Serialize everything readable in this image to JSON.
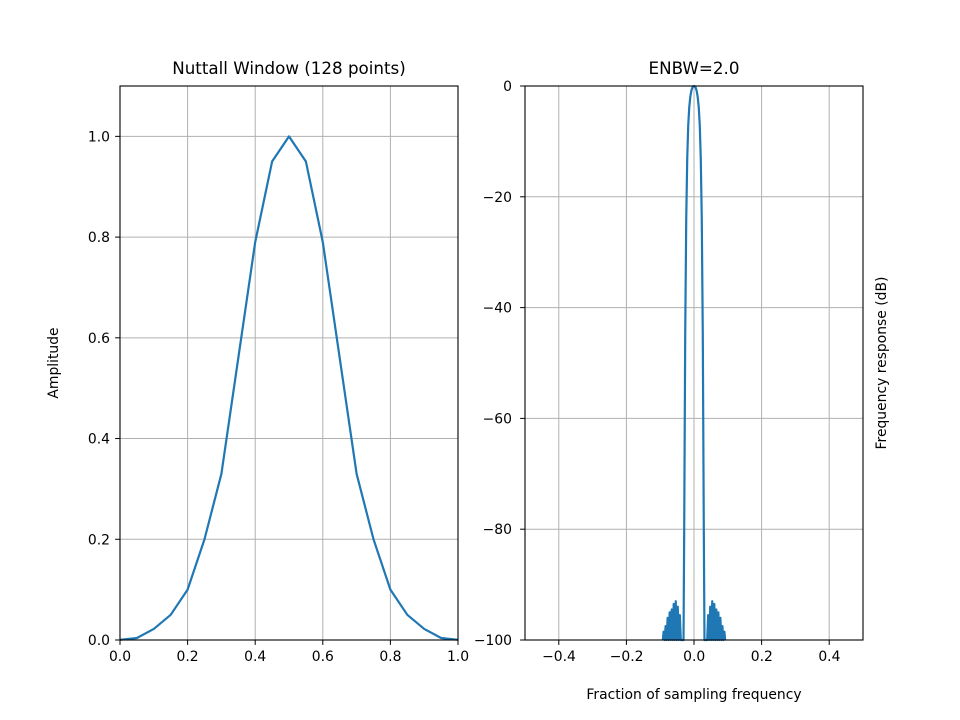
{
  "chart_data": [
    {
      "type": "line",
      "title": "Nuttall Window (128 points)",
      "xlabel": "",
      "ylabel": "Amplitude",
      "xlim": [
        0.0,
        1.0
      ],
      "ylim": [
        0.0,
        1.1
      ],
      "xticks": [
        "0.0",
        "0.2",
        "0.4",
        "0.6",
        "0.8",
        "1.0"
      ],
      "yticks": [
        "0.0",
        "0.2",
        "0.4",
        "0.6",
        "0.8",
        "1.0"
      ],
      "grid": true,
      "color": "#1f77b4",
      "series": [
        {
          "x": [
            0.0,
            0.05,
            0.1,
            0.15,
            0.2,
            0.25,
            0.3,
            0.35,
            0.4,
            0.45,
            0.5,
            0.55,
            0.6,
            0.65,
            0.7,
            0.75,
            0.8,
            0.85,
            0.9,
            0.95,
            1.0
          ],
          "y": [
            0.0004,
            0.004,
            0.022,
            0.05,
            0.1,
            0.2,
            0.33,
            0.56,
            0.79,
            0.95,
            1.0,
            0.95,
            0.79,
            0.56,
            0.33,
            0.2,
            0.1,
            0.05,
            0.022,
            0.004,
            0.0004
          ]
        }
      ]
    },
    {
      "type": "line",
      "title": "ENBW=2.0",
      "xlabel": "Fraction of sampling frequency",
      "ylabel": "Frequency response (dB)",
      "ylabel_position": "right",
      "xlim": [
        -0.5,
        0.5
      ],
      "ylim": [
        -100,
        0
      ],
      "xticks": [
        "−0.4",
        "−0.2",
        "0.0",
        "0.2",
        "0.4"
      ],
      "yticks": [
        "0",
        "−20",
        "−40",
        "−60",
        "−80",
        "−100"
      ],
      "grid": true,
      "color": "#1f77b4",
      "series": [
        {
          "x": [
            -0.092,
            -0.09,
            -0.087,
            -0.084,
            -0.081,
            -0.078,
            -0.075,
            -0.072,
            -0.069,
            -0.066,
            -0.063,
            -0.06,
            -0.057,
            -0.054,
            -0.051,
            -0.048,
            -0.045,
            -0.042,
            -0.039,
            -0.036,
            -0.033,
            -0.031,
            -0.0305,
            -0.029,
            -0.026,
            -0.023,
            -0.02,
            -0.017,
            -0.014,
            -0.011,
            -0.008,
            -0.005,
            -0.002,
            0.0,
            0.002,
            0.005,
            0.008,
            0.011,
            0.014,
            0.017,
            0.02,
            0.023,
            0.026,
            0.029,
            0.0305,
            0.031,
            0.033,
            0.036,
            0.039,
            0.042,
            0.045,
            0.048,
            0.051,
            0.054,
            0.057,
            0.06,
            0.063,
            0.066,
            0.069,
            0.072,
            0.075,
            0.078,
            0.081,
            0.084,
            0.087,
            0.09,
            0.092
          ],
          "y": [
            -100,
            -98.5,
            -100,
            -97.5,
            -100,
            -96,
            -100,
            -95,
            -100,
            -94.5,
            -100,
            -93.5,
            -100,
            -93,
            -100,
            -94,
            -100,
            -95.5,
            -100,
            -100,
            -100,
            -100,
            -95,
            -80,
            -45,
            -24,
            -13,
            -7,
            -3.8,
            -2,
            -0.9,
            -0.3,
            -0.05,
            0,
            -0.05,
            -0.3,
            -0.9,
            -2,
            -3.8,
            -7,
            -13,
            -24,
            -45,
            -80,
            -95,
            -100,
            -100,
            -100,
            -100,
            -95.5,
            -100,
            -94,
            -100,
            -93,
            -100,
            -93.5,
            -100,
            -94.5,
            -100,
            -95,
            -100,
            -96,
            -100,
            -97.5,
            -100,
            -98.5,
            -100
          ]
        }
      ]
    }
  ]
}
